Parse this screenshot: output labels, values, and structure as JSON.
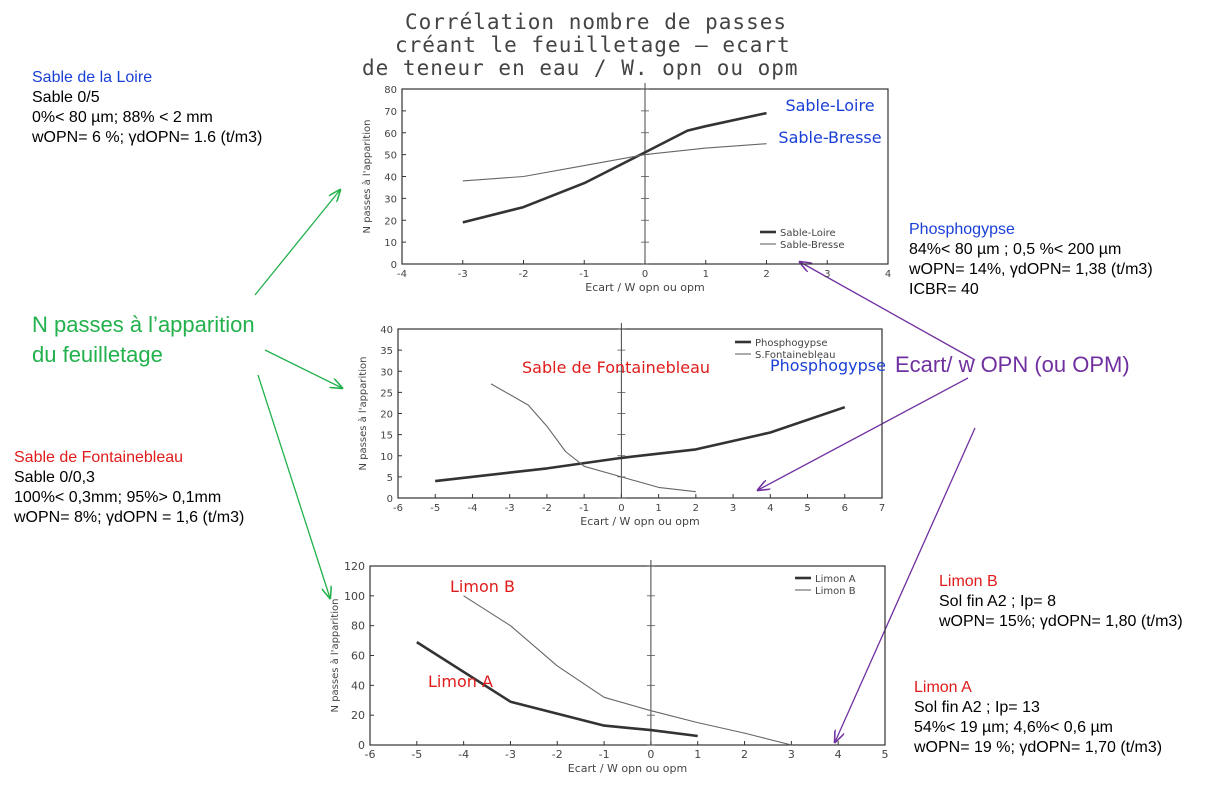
{
  "title": {
    "line1": "Corrélation nombre de passes",
    "line2": "créant le feuilletage — ecart",
    "line3": "de teneur en eau / W. opn ou opm"
  },
  "left_annotations": {
    "loire": {
      "name": "Sable de la Loire",
      "l1": "Sable 0/5",
      "l2": "0%< 80 µm; 88% < 2 mm",
      "l3": "wOPN= 6 %; γdOPN= 1.6 (t/m3)"
    },
    "center_label": [
      "N passes à l’apparition",
      "du feuilletage"
    ],
    "fontainebleau": {
      "name": "Sable de Fontainebleau",
      "l1": "Sable 0/0,3",
      "l2": "100%< 0,3mm; 95%> 0,1mm",
      "l3": "wOPN= 8%; γdOPN = 1,6 (t/m3)"
    }
  },
  "right_annotations": {
    "phospho": {
      "name": "Phosphogypse",
      "l1": "84%< 80 µm ; 0,5 %< 200 µm",
      "l2": "wOPN= 14%, γdOPN= 1,38 (t/m3)",
      "l3": "ICBR= 40"
    },
    "ecart_label": "Ecart/ w OPN (ou OPM)",
    "limonB": {
      "name": "Limon B",
      "l1": "Sol fin A2 ; Ip= 8",
      "l2": "wOPN= 15%; γdOPN= 1,80 (t/m3)"
    },
    "limonA": {
      "name": "Limon A",
      "l1": "Sol fin A2 ; Ip= 13",
      "l2": "54%< 19 µm; 4,6%< 0,6 µm",
      "l3": "wOPN= 19 %; γdOPN= 1,70 (t/m3)"
    }
  },
  "chart_data": [
    {
      "type": "line",
      "xlabel": "Ecart / W opn ou opm",
      "ylabel": "N passes à l'apparition",
      "xlim": [
        -4,
        4
      ],
      "ylim": [
        0,
        80
      ],
      "xticks": [
        -4,
        -3,
        -2,
        -1,
        0,
        1,
        2,
        3,
        4
      ],
      "yticks": [
        0,
        10,
        20,
        30,
        40,
        50,
        60,
        70,
        80
      ],
      "legend_position": "bottom-right",
      "series": [
        {
          "name": "Sable-Loire",
          "label": "Sable-Loire",
          "weight": "bold",
          "x": [
            -3,
            -2,
            -1,
            0,
            0.7,
            1,
            2
          ],
          "y": [
            19,
            26,
            37,
            51,
            61,
            63,
            69
          ]
        },
        {
          "name": "Sable-Bresse",
          "label": "Sable-Bresse",
          "weight": "thin",
          "x": [
            -3,
            -2,
            -1,
            0,
            1,
            2
          ],
          "y": [
            38,
            40,
            45,
            50,
            53,
            55
          ]
        }
      ]
    },
    {
      "type": "line",
      "xlabel": "Ecart / W opn ou opm",
      "ylabel": "N passes à l'apparition",
      "xlim": [
        -6,
        7
      ],
      "ylim": [
        0,
        40
      ],
      "xticks": [
        -6,
        -5,
        -4,
        -3,
        -2,
        -1,
        0,
        1,
        2,
        3,
        4,
        5,
        6,
        7
      ],
      "yticks": [
        0,
        5,
        10,
        15,
        20,
        25,
        30,
        35,
        40
      ],
      "legend_position": "top-right",
      "series": [
        {
          "name": "Phosphogypse",
          "label": "Phosphogypse",
          "weight": "bold",
          "x": [
            -5,
            -3,
            -2,
            0,
            2,
            4,
            6
          ],
          "y": [
            4,
            6,
            7,
            9.5,
            11.5,
            15.5,
            21.5
          ]
        },
        {
          "name": "S.Fontainebleau",
          "label": "Sable de Fontainebleau",
          "weight": "thin",
          "x": [
            -3.5,
            -2.5,
            -2,
            -1.5,
            -1,
            0,
            1,
            2
          ],
          "y": [
            27,
            22,
            17,
            11,
            7.5,
            5,
            2.5,
            1.5
          ]
        }
      ]
    },
    {
      "type": "line",
      "xlabel": "Ecart / W opn ou opm",
      "ylabel": "N passes à l'apparition",
      "xlim": [
        -6,
        5
      ],
      "ylim": [
        0,
        120
      ],
      "xticks": [
        -6,
        -5,
        -4,
        -3,
        -2,
        -1,
        0,
        1,
        2,
        3,
        4,
        5
      ],
      "yticks": [
        0,
        20,
        40,
        60,
        80,
        100,
        120
      ],
      "legend_position": "top-right",
      "series": [
        {
          "name": "Limon A",
          "label": "Limon A",
          "weight": "bold",
          "x": [
            -5,
            -3,
            -1,
            0,
            1
          ],
          "y": [
            69,
            29,
            13,
            10,
            6
          ]
        },
        {
          "name": "Limon B",
          "label": "Limon B",
          "weight": "thin",
          "x": [
            -4,
            -3,
            -2,
            -1,
            0,
            1,
            2,
            3
          ],
          "y": [
            100,
            80,
            53,
            32,
            23,
            15,
            8,
            0
          ]
        }
      ]
    }
  ]
}
